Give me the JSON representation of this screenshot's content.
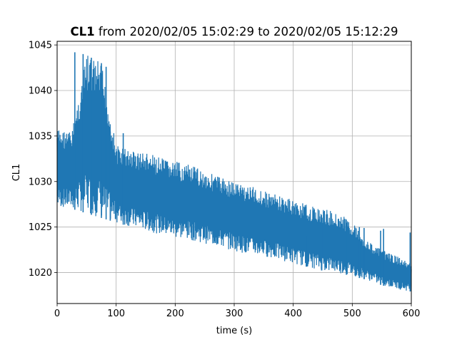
{
  "chart_data": {
    "type": "line",
    "title_bold": "CL1",
    "title_rest": " from 2020/02/05 15:02:29 to 2020/02/05 15:12:29",
    "xlabel": "time (s)",
    "ylabel": "CL1",
    "xlim": [
      0,
      600
    ],
    "ylim": [
      1016.6,
      1045.4
    ],
    "xticks": [
      0,
      100,
      200,
      300,
      400,
      500,
      600
    ],
    "yticks": [
      1020,
      1025,
      1030,
      1035,
      1040,
      1045
    ],
    "grid": true,
    "legend": "none",
    "line_color": "#1f77b4",
    "series": [
      {
        "x": [
          0,
          25,
          50,
          75,
          100,
          125,
          150,
          175,
          200,
          225,
          250,
          275,
          300,
          325,
          350,
          375,
          400,
          425,
          450,
          475,
          500,
          525,
          550,
          575,
          600
        ],
        "upper": [
          1035.8,
          1035.5,
          1044.0,
          1043.0,
          1034.0,
          1033.5,
          1033.2,
          1032.6,
          1032.2,
          1031.8,
          1031.2,
          1030.6,
          1030.0,
          1029.6,
          1029.0,
          1028.5,
          1028.0,
          1027.4,
          1027.0,
          1026.6,
          1025.6,
          1023.5,
          1022.5,
          1021.8,
          1021.0
        ],
        "lower": [
          1027.2,
          1027.0,
          1026.5,
          1026.0,
          1025.5,
          1025.0,
          1024.6,
          1024.2,
          1023.8,
          1023.6,
          1023.2,
          1022.8,
          1022.4,
          1022.0,
          1021.8,
          1021.4,
          1021.0,
          1020.6,
          1020.2,
          1020.0,
          1019.6,
          1019.2,
          1018.6,
          1018.2,
          1017.9
        ],
        "spikes": [
          {
            "x": 30,
            "y": 1044.2
          },
          {
            "x": 44,
            "y": 1044.0
          },
          {
            "x": 58,
            "y": 1043.6
          },
          {
            "x": 75,
            "y": 1043.0
          },
          {
            "x": 83,
            "y": 1042.6
          },
          {
            "x": 90,
            "y": 1035.5
          },
          {
            "x": 112,
            "y": 1035.3
          },
          {
            "x": 422,
            "y": 1024.0
          },
          {
            "x": 448,
            "y": 1025.3
          },
          {
            "x": 490,
            "y": 1025.2
          },
          {
            "x": 512,
            "y": 1025.0
          },
          {
            "x": 520,
            "y": 1024.9
          },
          {
            "x": 548,
            "y": 1024.6
          },
          {
            "x": 553,
            "y": 1024.8
          },
          {
            "x": 598,
            "y": 1024.4
          }
        ]
      }
    ]
  }
}
